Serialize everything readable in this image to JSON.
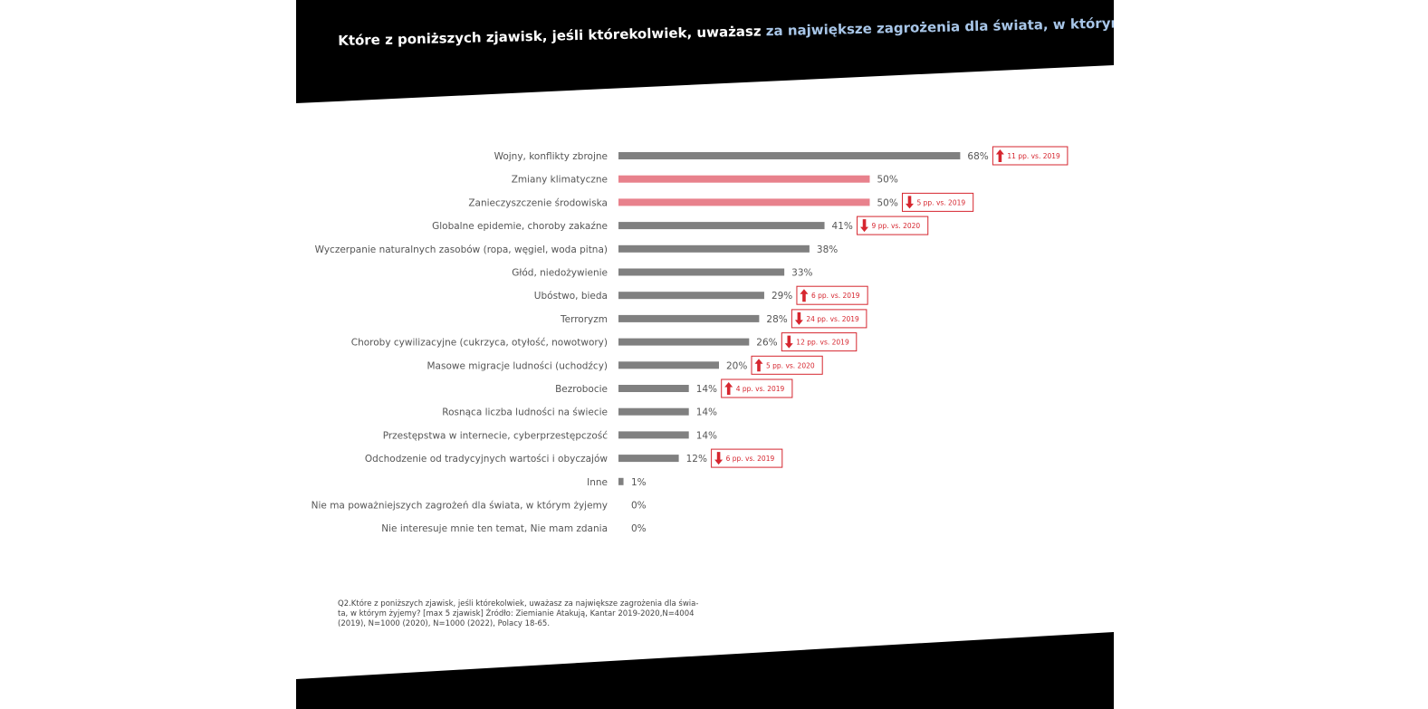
{
  "title": {
    "part1": "Które z poniższych zjawisk, jeśli którekolwiek, uważasz ",
    "highlight": "za największe zagrożenia dla świata, w którym żyjem",
    "part2": "y?"
  },
  "colors": {
    "bar_default": "#808080",
    "bar_highlight": "#e8818c",
    "badge": "#d6262f",
    "header_bg": "#000000",
    "title_highlight": "#a8c6e8"
  },
  "chart_data": {
    "type": "bar",
    "orientation": "horizontal",
    "categories": [
      "Wojny, konflikty zbrojne",
      "Zmiany klimatyczne",
      "Zanieczyszczenie środowiska",
      "Globalne epidemie, choroby zakaźne",
      "Wyczerpanie naturalnych zasobów (ropa, węgiel, woda pitna)",
      "Głód, niedożywienie",
      "Ubóstwo, bieda",
      "Terroryzm",
      "Choroby cywilizacyjne (cukrzyca, otyłość, nowotwory)",
      "Masowe migracje ludności (uchodźcy)",
      "Bezrobocie",
      "Rosnąca liczba ludności na świecie",
      "Przestępstwa w internecie, cyberprzestępczość",
      "Odchodzenie od tradycyjnych wartości i obyczajów",
      "Inne",
      "Nie ma poważniejszych zagrożeń dla świata, w którym żyjemy",
      "Nie interesuje mnie ten temat, Nie mam zdania"
    ],
    "values": [
      68,
      50,
      50,
      41,
      38,
      33,
      29,
      28,
      26,
      20,
      14,
      14,
      14,
      12,
      1,
      0,
      0
    ],
    "value_labels": [
      "68%",
      "50%",
      "50%",
      "41%",
      "38%",
      "33%",
      "29%",
      "28%",
      "26%",
      "20%",
      "14%",
      "14%",
      "14%",
      "12%",
      "1%",
      "0%",
      "0%"
    ],
    "highlighted": [
      false,
      true,
      true,
      false,
      false,
      false,
      false,
      false,
      false,
      false,
      false,
      false,
      false,
      false,
      false,
      false,
      false
    ],
    "changes": [
      {
        "index": 0,
        "direction": "up",
        "label": "11 pp. vs. 2019"
      },
      {
        "index": 2,
        "direction": "down",
        "label": "5 pp. vs. 2019"
      },
      {
        "index": 3,
        "direction": "down",
        "label": "9 pp. vs. 2020"
      },
      {
        "index": 6,
        "direction": "up",
        "label": "6 pp. vs. 2019"
      },
      {
        "index": 7,
        "direction": "down",
        "label": "24 pp. vs. 2019"
      },
      {
        "index": 8,
        "direction": "down",
        "label": "12 pp. vs. 2019"
      },
      {
        "index": 9,
        "direction": "up",
        "label": "5 pp. vs. 2020"
      },
      {
        "index": 10,
        "direction": "up",
        "label": "4 pp. vs. 2019"
      },
      {
        "index": 13,
        "direction": "down",
        "label": "6 pp. vs. 2019"
      }
    ],
    "xlim": [
      0,
      100
    ],
    "grid": false,
    "legend": "none"
  },
  "footnote": "Q2.Które z poniższych zjawisk, jeśli którekolwiek, uważasz za największe zagrożenia dla świa-ta, w którym żyjemy? [max 5 zjawisk] Źródło: Ziemianie Atakują, Kantar 2019-2020,N=4004 (2019), N=1000 (2020), N=1000 (2022), Polacy 18-65."
}
